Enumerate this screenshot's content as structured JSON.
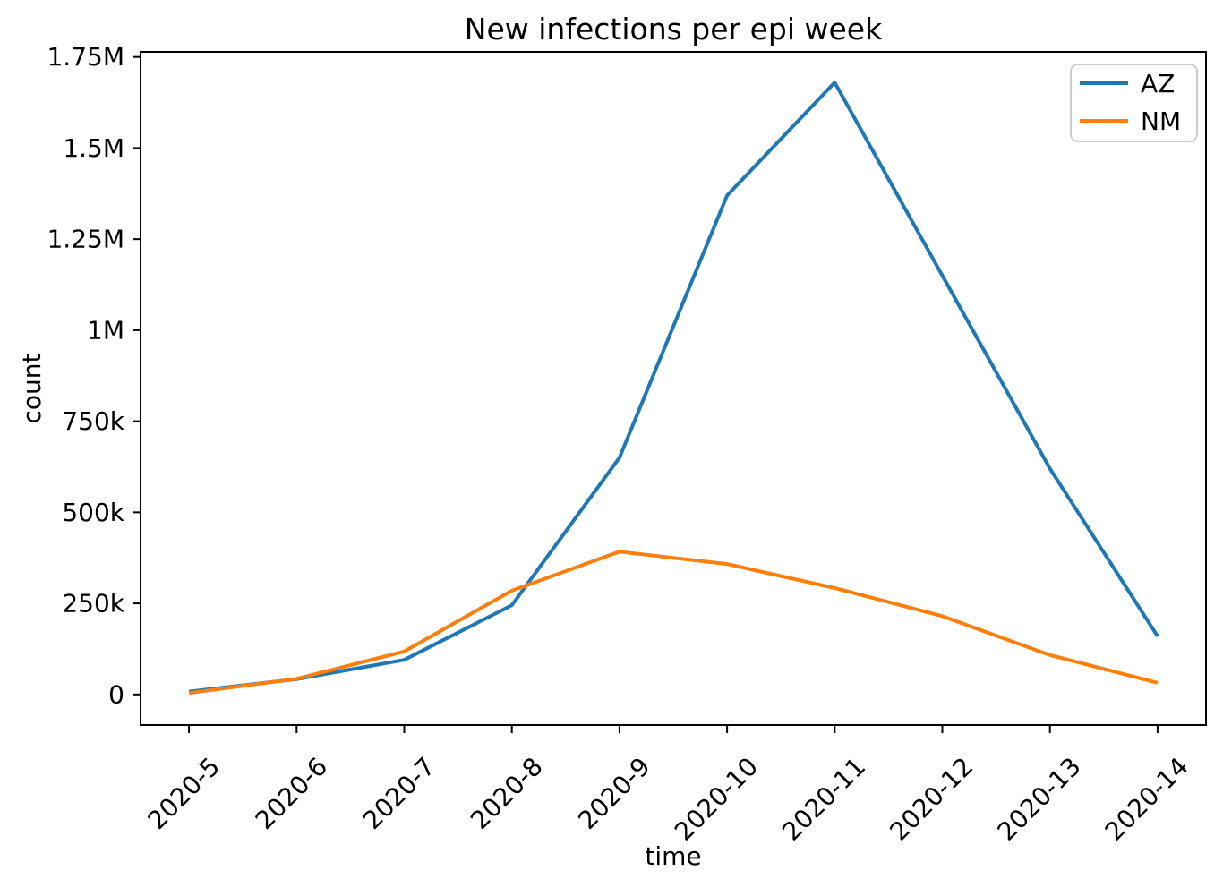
{
  "chart_data": {
    "type": "line",
    "title": "New infections per epi week",
    "xlabel": "time",
    "ylabel": "count",
    "categories": [
      "2020-5",
      "2020-6",
      "2020-7",
      "2020-8",
      "2020-9",
      "2020-10",
      "2020-11",
      "2020-12",
      "2020-13",
      "2020-14"
    ],
    "series": [
      {
        "name": "AZ",
        "color": "#1f77b4",
        "values": [
          8000,
          42000,
          95000,
          245000,
          650000,
          1370000,
          1680000,
          1150000,
          620000,
          160000
        ]
      },
      {
        "name": "NM",
        "color": "#ff7f0e",
        "values": [
          4000,
          43000,
          118000,
          285000,
          392000,
          358000,
          292000,
          215000,
          108000,
          32000
        ]
      }
    ],
    "yticks": {
      "values": [
        0,
        250000,
        500000,
        750000,
        1000000,
        1250000,
        1500000,
        1750000
      ],
      "labels": [
        "0",
        "250k",
        "500k",
        "750k",
        "1M",
        "1.25M",
        "1.5M",
        "1.75M"
      ]
    },
    "ylim": [
      -84000,
      1764000
    ],
    "xlim": [
      -0.45,
      9.45
    ],
    "x_tick_rotation_deg": 45,
    "grid": false,
    "legend": {
      "position": "upper right",
      "entries": [
        "AZ",
        "NM"
      ]
    }
  },
  "colors": {
    "background": "#ffffff",
    "axis": "#000000",
    "text": "#000000",
    "legend_border": "#cccccc",
    "series_az": "#1f77b4",
    "series_nm": "#ff7f0e"
  }
}
